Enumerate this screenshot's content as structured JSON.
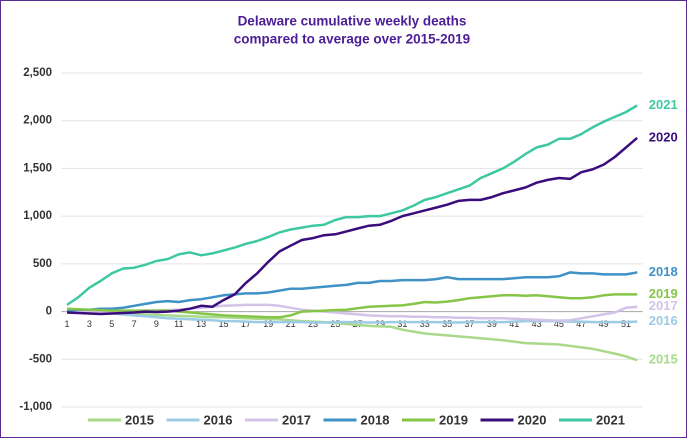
{
  "chart_data": {
    "type": "line",
    "title": [
      "Delaware cumulative weekly deaths",
      "compared to average over 2015-2019"
    ],
    "categories": [
      1,
      null,
      3,
      null,
      5,
      null,
      7,
      null,
      9,
      null,
      11,
      null,
      13,
      null,
      15,
      null,
      17,
      null,
      19,
      null,
      21,
      null,
      23,
      null,
      25,
      null,
      27,
      null,
      29,
      null,
      31,
      null,
      33,
      null,
      35,
      null,
      37,
      null,
      39,
      null,
      41,
      null,
      43,
      null,
      45,
      null,
      47,
      null,
      49,
      null,
      51,
      null
    ],
    "ylim": [
      -1000,
      2500
    ],
    "yticks": [
      {
        "value": -1000,
        "label": "-1,000"
      },
      -500,
      0,
      500,
      {
        "value": 1000,
        "label": "1,000"
      },
      {
        "value": 1500,
        "label": "1,500"
      },
      {
        "value": 2000,
        "label": "2,000"
      },
      {
        "value": 2500,
        "label": "2,500"
      }
    ],
    "grid": true,
    "legend": "bottom",
    "series": [
      {
        "name": "2015",
        "color": "#a9d98a",
        "values": [
          20,
          15,
          10,
          5,
          0,
          -10,
          -20,
          -30,
          -35,
          -40,
          -45,
          -50,
          -55,
          -58,
          -60,
          -65,
          -70,
          -75,
          -78,
          -80,
          -90,
          -100,
          -105,
          -110,
          -120,
          -130,
          -140,
          -150,
          -155,
          -160,
          -190,
          -210,
          -230,
          -240,
          -250,
          -260,
          -270,
          -280,
          -290,
          -300,
          -315,
          -330,
          -335,
          -340,
          -345,
          -360,
          -375,
          -390,
          -415,
          -440,
          -470,
          -510
        ]
      },
      {
        "name": "2016",
        "color": "#9ccbe6",
        "values": [
          0,
          -5,
          -10,
          -15,
          -20,
          -30,
          -40,
          -50,
          -60,
          -70,
          -75,
          -80,
          -85,
          -90,
          -100,
          -100,
          -105,
          -110,
          -110,
          -110,
          -110,
          -110,
          -115,
          -115,
          -110,
          -110,
          -110,
          -115,
          -115,
          -110,
          -110,
          -110,
          -110,
          -110,
          -115,
          -115,
          -110,
          -110,
          -110,
          -110,
          -105,
          -100,
          -100,
          -100,
          -100,
          -105,
          -105,
          -110,
          -110,
          -110,
          -110,
          -105
        ]
      },
      {
        "name": "2017",
        "color": "#d3c3e8",
        "values": [
          0,
          0,
          -5,
          -5,
          -10,
          -5,
          0,
          5,
          10,
          15,
          20,
          30,
          40,
          50,
          60,
          65,
          70,
          70,
          70,
          60,
          40,
          20,
          10,
          0,
          -10,
          -20,
          -30,
          -40,
          -45,
          -50,
          -50,
          -55,
          -55,
          -60,
          -60,
          -65,
          -65,
          -70,
          -70,
          -70,
          -75,
          -80,
          -85,
          -90,
          -95,
          -90,
          -70,
          -50,
          -30,
          -10,
          40,
          50
        ]
      },
      {
        "name": "2018",
        "color": "#3f91c6",
        "values": [
          10,
          20,
          20,
          30,
          30,
          40,
          60,
          80,
          100,
          110,
          100,
          120,
          130,
          150,
          170,
          180,
          190,
          190,
          200,
          220,
          240,
          240,
          250,
          260,
          270,
          280,
          300,
          300,
          320,
          320,
          330,
          330,
          330,
          340,
          360,
          340,
          340,
          340,
          340,
          340,
          350,
          360,
          360,
          360,
          370,
          410,
          400,
          400,
          390,
          390,
          390,
          410
        ]
      },
      {
        "name": "2019",
        "color": "#86c548",
        "values": [
          30,
          25,
          20,
          15,
          10,
          10,
          10,
          10,
          10,
          10,
          0,
          -10,
          -20,
          -30,
          -40,
          -45,
          -50,
          -55,
          -60,
          -60,
          -40,
          0,
          5,
          10,
          15,
          20,
          35,
          50,
          55,
          60,
          65,
          80,
          100,
          95,
          105,
          120,
          140,
          150,
          160,
          170,
          170,
          165,
          170,
          160,
          150,
          140,
          140,
          150,
          170,
          180,
          180,
          180
        ]
      },
      {
        "name": "2020",
        "color": "#3a0c7c",
        "values": [
          -10,
          -15,
          -20,
          -25,
          -20,
          -15,
          -10,
          0,
          -5,
          0,
          10,
          30,
          60,
          50,
          120,
          180,
          300,
          400,
          520,
          630,
          690,
          750,
          770,
          800,
          810,
          840,
          870,
          900,
          910,
          950,
          1000,
          1030,
          1060,
          1090,
          1120,
          1160,
          1170,
          1170,
          1200,
          1240,
          1270,
          1300,
          1350,
          1380,
          1400,
          1390,
          1460,
          1490,
          1540,
          1620,
          1720,
          1820
        ]
      },
      {
        "name": "2021",
        "color": "#3ec8a2",
        "values": [
          70,
          150,
          250,
          320,
          400,
          450,
          460,
          490,
          530,
          550,
          600,
          620,
          590,
          610,
          640,
          670,
          710,
          740,
          780,
          830,
          860,
          880,
          900,
          910,
          960,
          990,
          990,
          1000,
          1000,
          1030,
          1060,
          1110,
          1170,
          1200,
          1240,
          1280,
          1320,
          1400,
          1450,
          1500,
          1570,
          1650,
          1720,
          1750,
          1810,
          1810,
          1860,
          1930,
          1990,
          2040,
          2090,
          2160
        ]
      }
    ]
  }
}
